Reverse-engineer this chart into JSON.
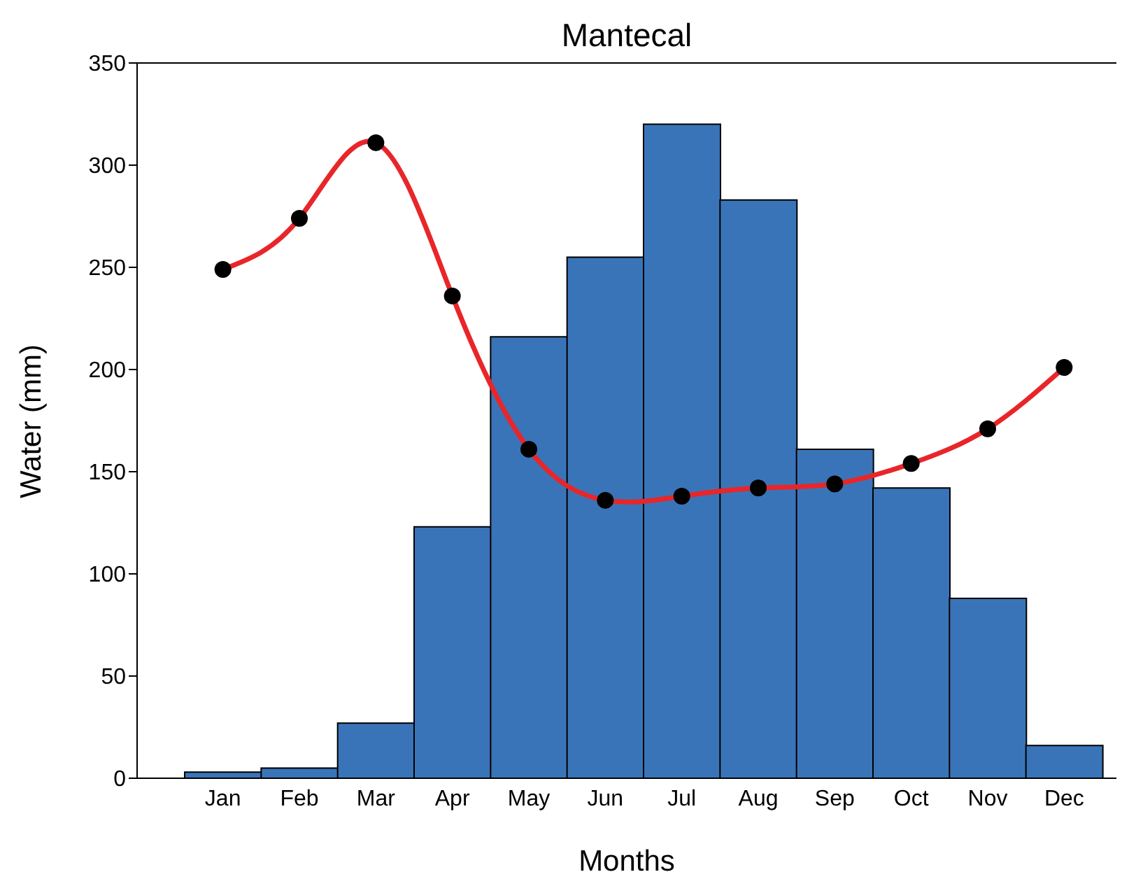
{
  "chart_data": {
    "type": "bar",
    "title": "Mantecal",
    "xlabel": "Months",
    "ylabel": "Water (mm)",
    "categories": [
      "Jan",
      "Feb",
      "Mar",
      "Apr",
      "May",
      "Jun",
      "Jul",
      "Aug",
      "Sep",
      "Oct",
      "Nov",
      "Dec"
    ],
    "series": [
      {
        "color": "#3a74b8",
        "values": [
          3,
          5,
          27,
          123,
          216,
          255,
          320,
          283,
          161,
          142,
          88,
          16
        ]
      },
      {
        "type": "line",
        "color": "#e8262a",
        "marker": "circle",
        "values": [
          249,
          274,
          311,
          236,
          161,
          136,
          138,
          142,
          144,
          154,
          171,
          201
        ]
      }
    ],
    "ylim": [
      0,
      350
    ],
    "yticks": [
      0,
      50,
      100,
      150,
      200,
      250,
      300,
      350
    ],
    "grid": false
  }
}
